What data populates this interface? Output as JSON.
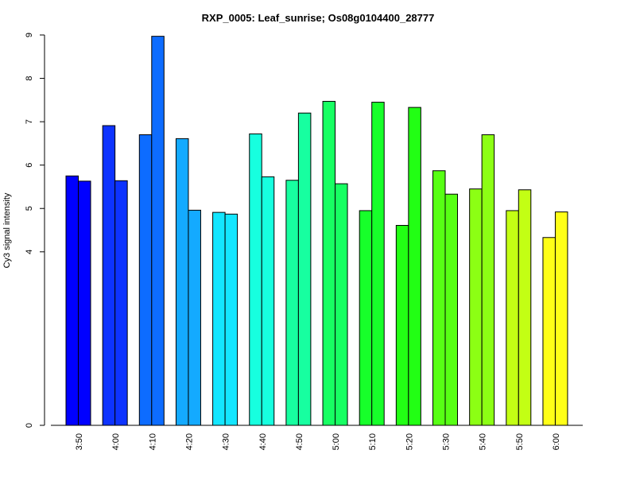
{
  "chart_data": {
    "type": "bar",
    "title": "RXP_0005: Leaf_sunrise; Os08g0104400_28777",
    "xlabel": "",
    "ylabel": "Cy3 signal intensity",
    "ylim": [
      0,
      9
    ],
    "y_ticks": [
      "0",
      "4",
      "5",
      "6",
      "7",
      "8",
      "9"
    ],
    "categories": [
      "3:50",
      "4:00",
      "4:10",
      "4:20",
      "4:30",
      "4:40",
      "4:50",
      "5:00",
      "5:10",
      "5:20",
      "5:30",
      "5:40",
      "5:50",
      "6:00"
    ],
    "series": [
      {
        "values": [
          5.75,
          6.91,
          6.7,
          6.61,
          4.91,
          6.72,
          5.65,
          7.47,
          4.95,
          4.61,
          5.87,
          5.45,
          4.95,
          4.33
        ]
      },
      {
        "values": [
          5.63,
          5.64,
          8.97,
          4.96,
          4.87,
          5.73,
          7.2,
          5.57,
          7.45,
          7.33,
          5.33,
          6.7,
          5.43,
          4.92
        ]
      }
    ],
    "colors": [
      "#0000FF",
      "#0D33FF",
      "#0D6CFF",
      "#14AAFF",
      "#14E6FF",
      "#17FFDF",
      "#17FFA0",
      "#17FF62",
      "#17FF2A",
      "#22FF14",
      "#57FF14",
      "#8CFF14",
      "#C3FF14",
      "#FFFF17"
    ],
    "grid": false,
    "legend": "none"
  }
}
